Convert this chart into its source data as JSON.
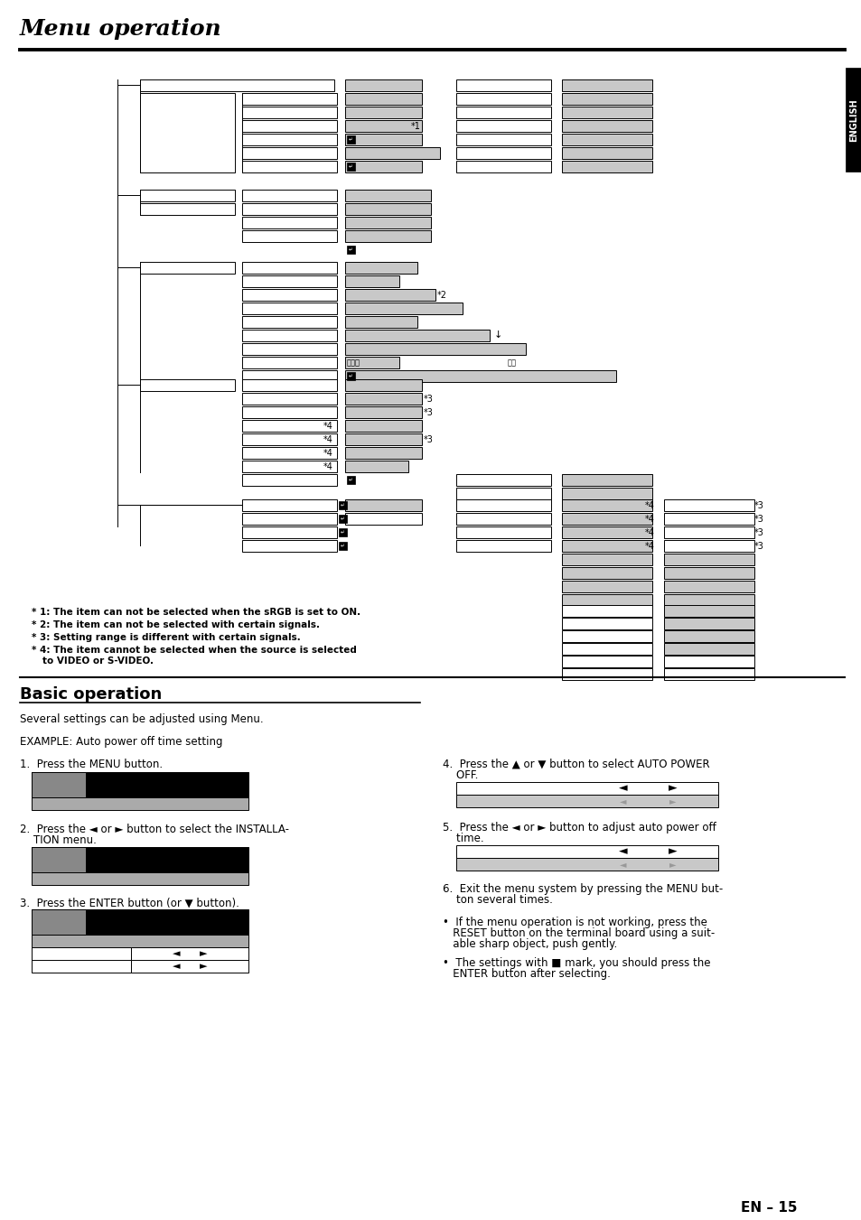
{
  "title": "Menu operation",
  "section_title": "Basic operation",
  "section_subtitle": "Several settings can be adjusted using Menu.",
  "example_text": "EXAMPLE: Auto power off time setting",
  "footnotes": [
    "* 1: The item can not be selected when the sRGB is set to ON.",
    "* 2: The item can not be selected with certain signals.",
    "* 3: Setting range is different with certain signals.",
    "* 4: The item cannot be selected when the source is selected",
    "     to VIDEO or S-VIDEO."
  ],
  "page_number": "EN – 15",
  "sidebar_text": "ENGLISH",
  "bg": "#ffffff",
  "gray": "#c8c8c8",
  "black": "#000000",
  "white": "#ffffff"
}
